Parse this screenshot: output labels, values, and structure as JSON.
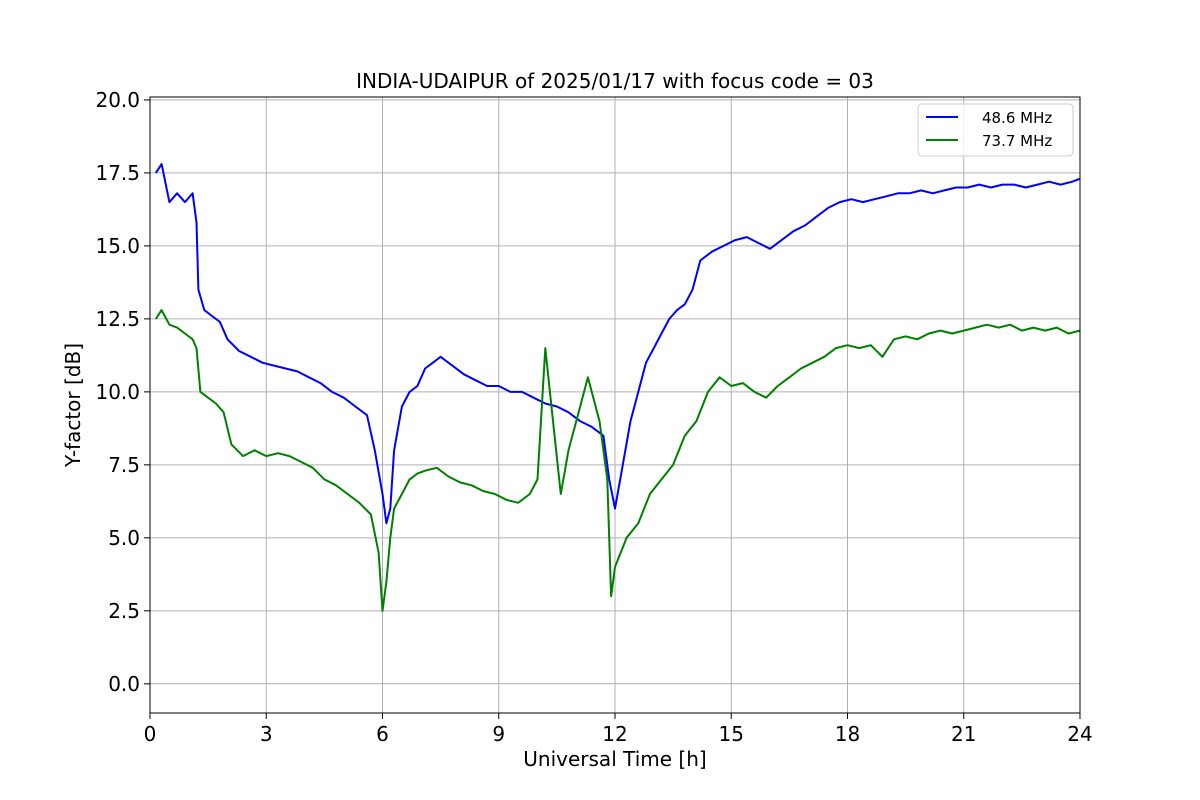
{
  "chart_data": {
    "type": "line",
    "title": "INDIA-UDAIPUR of 2025/01/17 with focus code = 03",
    "xlabel": "Universal Time [h]",
    "ylabel": "Y-factor [dB]",
    "xlim": [
      0,
      24
    ],
    "ylim": [
      -1,
      20.1
    ],
    "xticks": [
      0,
      3,
      6,
      9,
      12,
      15,
      18,
      21,
      24
    ],
    "xtick_labels": [
      "0",
      "3",
      "6",
      "9",
      "12",
      "15",
      "18",
      "21",
      "24"
    ],
    "yticks": [
      0,
      2.5,
      5,
      7.5,
      10,
      12.5,
      15,
      17.5,
      20
    ],
    "ytick_labels": [
      "0.0",
      "2.5",
      "5.0",
      "7.5",
      "10.0",
      "12.5",
      "15.0",
      "17.5",
      "20.0"
    ],
    "grid": true,
    "legend_position": "top-right",
    "series": [
      {
        "name": "48.6 MHz",
        "color": "#0000ff",
        "x": [
          0.15,
          0.3,
          0.5,
          0.7,
          0.9,
          1.1,
          1.2,
          1.25,
          1.4,
          1.6,
          1.8,
          2.0,
          2.3,
          2.6,
          2.9,
          3.2,
          3.5,
          3.8,
          4.1,
          4.4,
          4.7,
          5.0,
          5.3,
          5.6,
          5.8,
          6.0,
          6.1,
          6.2,
          6.3,
          6.5,
          6.7,
          6.9,
          7.1,
          7.3,
          7.5,
          7.8,
          8.1,
          8.4,
          8.7,
          9.0,
          9.3,
          9.6,
          9.9,
          10.2,
          10.5,
          10.8,
          11.1,
          11.4,
          11.7,
          11.85,
          12.0,
          12.2,
          12.4,
          12.6,
          12.8,
          13.0,
          13.2,
          13.4,
          13.6,
          13.8,
          14.0,
          14.2,
          14.5,
          14.8,
          15.1,
          15.4,
          15.7,
          16.0,
          16.3,
          16.6,
          16.9,
          17.2,
          17.5,
          17.8,
          18.1,
          18.4,
          18.7,
          19.0,
          19.3,
          19.6,
          19.9,
          20.2,
          20.5,
          20.8,
          21.1,
          21.4,
          21.7,
          22.0,
          22.3,
          22.6,
          22.9,
          23.2,
          23.5,
          23.8,
          24.0
        ],
        "y": [
          17.5,
          17.8,
          16.5,
          16.8,
          16.5,
          16.8,
          15.8,
          13.5,
          12.8,
          12.6,
          12.4,
          11.8,
          11.4,
          11.2,
          11.0,
          10.9,
          10.8,
          10.7,
          10.5,
          10.3,
          10.0,
          9.8,
          9.5,
          9.2,
          8.0,
          6.5,
          5.5,
          6.0,
          8.0,
          9.5,
          10.0,
          10.2,
          10.8,
          11.0,
          11.2,
          10.9,
          10.6,
          10.4,
          10.2,
          10.2,
          10.0,
          10.0,
          9.8,
          9.6,
          9.5,
          9.3,
          9.0,
          8.8,
          8.5,
          7.0,
          6.0,
          7.5,
          9.0,
          10.0,
          11.0,
          11.5,
          12.0,
          12.5,
          12.8,
          13.0,
          13.5,
          14.5,
          14.8,
          15.0,
          15.2,
          15.3,
          15.1,
          14.9,
          15.2,
          15.5,
          15.7,
          16.0,
          16.3,
          16.5,
          16.6,
          16.5,
          16.6,
          16.7,
          16.8,
          16.8,
          16.9,
          16.8,
          16.9,
          17.0,
          17.0,
          17.1,
          17.0,
          17.1,
          17.1,
          17.0,
          17.1,
          17.2,
          17.1,
          17.2,
          17.3
        ]
      },
      {
        "name": "73.7 MHz",
        "color": "#008000",
        "x": [
          0.15,
          0.3,
          0.5,
          0.7,
          0.9,
          1.1,
          1.2,
          1.3,
          1.5,
          1.7,
          1.9,
          2.1,
          2.4,
          2.7,
          3.0,
          3.3,
          3.6,
          3.9,
          4.2,
          4.5,
          4.8,
          5.1,
          5.4,
          5.7,
          5.9,
          6.0,
          6.1,
          6.2,
          6.3,
          6.5,
          6.7,
          6.9,
          7.1,
          7.4,
          7.7,
          8.0,
          8.3,
          8.6,
          8.9,
          9.2,
          9.5,
          9.8,
          10.0,
          10.2,
          10.4,
          10.6,
          10.8,
          11.0,
          11.3,
          11.6,
          11.8,
          11.9,
          12.0,
          12.3,
          12.6,
          12.9,
          13.2,
          13.5,
          13.8,
          14.1,
          14.4,
          14.7,
          15.0,
          15.3,
          15.6,
          15.9,
          16.2,
          16.5,
          16.8,
          17.1,
          17.4,
          17.7,
          18.0,
          18.3,
          18.6,
          18.9,
          19.2,
          19.5,
          19.8,
          20.1,
          20.4,
          20.7,
          21.0,
          21.3,
          21.6,
          21.9,
          22.2,
          22.5,
          22.8,
          23.1,
          23.4,
          23.7,
          24.0
        ],
        "y": [
          12.5,
          12.8,
          12.3,
          12.2,
          12.0,
          11.8,
          11.5,
          10.0,
          9.8,
          9.6,
          9.3,
          8.2,
          7.8,
          8.0,
          7.8,
          7.9,
          7.8,
          7.6,
          7.4,
          7.0,
          6.8,
          6.5,
          6.2,
          5.8,
          4.5,
          2.5,
          3.5,
          5.0,
          6.0,
          6.5,
          7.0,
          7.2,
          7.3,
          7.4,
          7.1,
          6.9,
          6.8,
          6.6,
          6.5,
          6.3,
          6.2,
          6.5,
          7.0,
          11.5,
          9.0,
          6.5,
          8.0,
          9.0,
          10.5,
          9.0,
          7.0,
          3.0,
          4.0,
          5.0,
          5.5,
          6.5,
          7.0,
          7.5,
          8.5,
          9.0,
          10.0,
          10.5,
          10.2,
          10.3,
          10.0,
          9.8,
          10.2,
          10.5,
          10.8,
          11.0,
          11.2,
          11.5,
          11.6,
          11.5,
          11.6,
          11.2,
          11.8,
          11.9,
          11.8,
          12.0,
          12.1,
          12.0,
          12.1,
          12.2,
          12.3,
          12.2,
          12.3,
          12.1,
          12.2,
          12.1,
          12.2,
          12.0,
          12.1
        ]
      }
    ]
  }
}
